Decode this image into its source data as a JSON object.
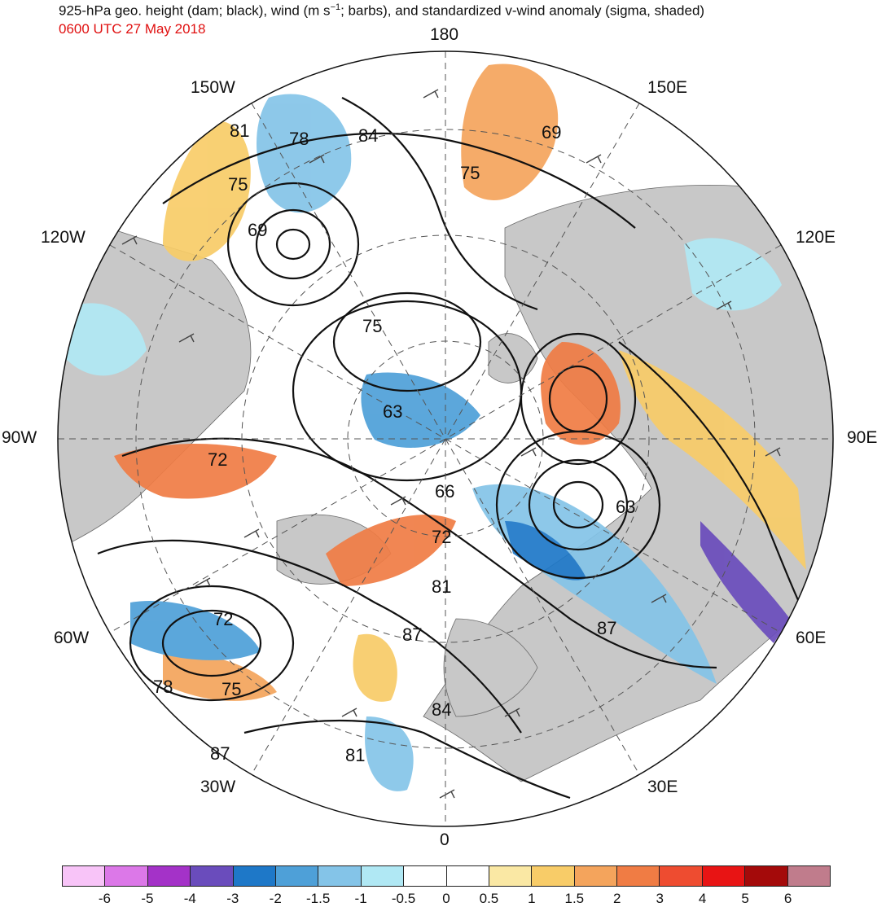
{
  "header": {
    "title_pre": "925-hPa geo. height (dam; black), wind (m s",
    "title_sup": "−1",
    "title_post": "; barbs), and standardized v-wind anomaly (sigma, shaded)",
    "time": "0600 UTC 27 May 2018",
    "time_color": "#e01010"
  },
  "map": {
    "projection": "north-polar-stereographic",
    "longitude_labels": [
      "180",
      "150E",
      "120E",
      "90E",
      "60E",
      "30E",
      "0",
      "30W",
      "60W",
      "90W",
      "120W",
      "150W"
    ],
    "height_contour_labels": [
      "84",
      "78",
      "81",
      "75",
      "69",
      "69",
      "75",
      "75",
      "63",
      "72",
      "66",
      "72",
      "63",
      "81",
      "87",
      "72",
      "87",
      "78",
      "75",
      "84",
      "87",
      "81"
    ],
    "land_color": "#c8c8c8"
  },
  "colorbar": {
    "colors": [
      "#f8c4f8",
      "#dc78e8",
      "#a432c8",
      "#6a4cbc",
      "#1e78c8",
      "#4ea0d8",
      "#84c4e8",
      "#b0e8f4",
      "#ffffff",
      "#ffffff",
      "#fae8a4",
      "#f8cc68",
      "#f4a45c",
      "#f07c44",
      "#ee4c30",
      "#e81414",
      "#a40a0a",
      "#c07c8c"
    ],
    "labels": [
      "-6",
      "-5",
      "-4",
      "-3",
      "-2",
      "-1.5",
      "-1",
      "-0.5",
      "0",
      "0.5",
      "1",
      "1.5",
      "2",
      "3",
      "4",
      "5",
      "6"
    ]
  }
}
